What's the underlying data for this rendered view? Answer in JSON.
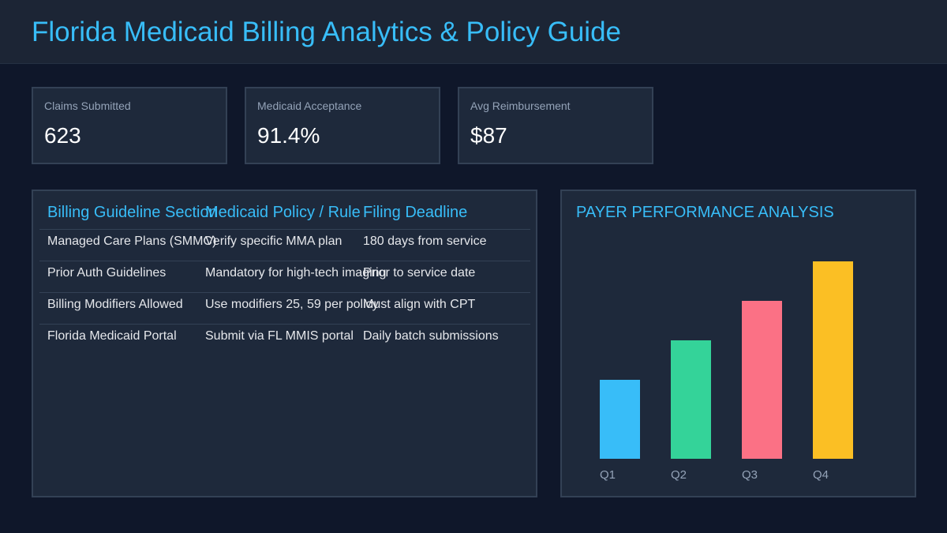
{
  "header": {
    "title": "Florida Medicaid Billing Analytics & Policy Guide"
  },
  "kpis": [
    {
      "label": "Claims Submitted",
      "value": "623"
    },
    {
      "label": "Medicaid Acceptance",
      "value": "91.4%"
    },
    {
      "label": "Avg Reimbursement",
      "value": "$87"
    }
  ],
  "table": {
    "headers": [
      "Billing Guideline Section",
      "Medicaid Policy / Rule",
      "Filing Deadline"
    ],
    "rows": [
      [
        "Managed Care Plans (SMMC)",
        "Verify specific MMA plan",
        "180 days from service"
      ],
      [
        "Prior Auth Guidelines",
        "Mandatory for high-tech imaging",
        "Prior to service date"
      ],
      [
        "Billing Modifiers Allowed",
        "Use modifiers 25, 59 per policy",
        "Must align with CPT"
      ],
      [
        "Florida Medicaid Portal",
        "Submit via FL MMIS portal",
        "Daily batch submissions"
      ]
    ]
  },
  "chart_panel": {
    "title": "PAYER PERFORMANCE ANALYSIS"
  },
  "chart_data": {
    "type": "bar",
    "title": "PAYER PERFORMANCE ANALYSIS",
    "categories": [
      "Q1",
      "Q2",
      "Q3",
      "Q4"
    ],
    "values": [
      100,
      150,
      200,
      250
    ],
    "colors": [
      "#38bdf8",
      "#34d399",
      "#fb7185",
      "#fbbf24"
    ],
    "grid": false,
    "xlabel": "",
    "ylabel": ""
  }
}
